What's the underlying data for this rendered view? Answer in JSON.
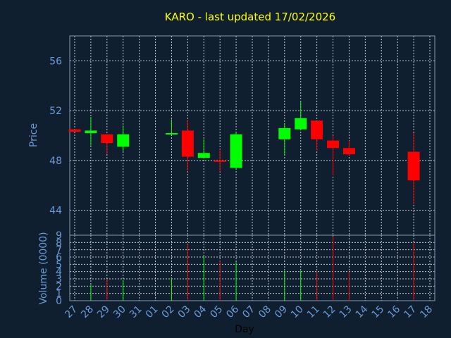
{
  "chart_data": {
    "type": "candlestick",
    "title": "KARO - last updated 17/02/2026",
    "xlabel": "Day",
    "colors": {
      "background": "#0f1f30",
      "up": "#00ff00",
      "down": "#ff0000",
      "grid": "#ffffff",
      "axis": "#8a9ab0",
      "tick_text": "#6a9ad6",
      "title": "#ffff00"
    },
    "x_ticks": [
      "27",
      "28",
      "29",
      "30",
      "31",
      "01",
      "02",
      "03",
      "04",
      "05",
      "06",
      "07",
      "08",
      "09",
      "10",
      "11",
      "12",
      "13",
      "14",
      "15",
      "16",
      "17",
      "18"
    ],
    "price_panel": {
      "ylabel": "Price",
      "ylim": [
        42,
        58
      ],
      "ticks": [
        "44",
        "48",
        "52",
        "56"
      ],
      "tick_values": [
        44,
        48,
        52,
        56
      ],
      "grid": true
    },
    "volume_panel": {
      "ylabel": "Volume (0000)",
      "ylim": [
        0,
        9
      ],
      "ticks": [
        "0",
        "1",
        "2",
        "3",
        "4",
        "5",
        "6",
        "7",
        "8",
        "9"
      ],
      "tick_values": [
        0,
        1,
        2,
        3,
        4,
        5,
        6,
        7,
        8,
        9
      ],
      "grid": true
    },
    "candles": [
      {
        "day": "27",
        "open": 50.5,
        "high": 50.5,
        "low": 50.3,
        "close": 50.3,
        "volume": 0.0
      },
      {
        "day": "28",
        "open": 50.2,
        "high": 51.5,
        "low": 49.2,
        "close": 50.4,
        "volume": 2.2
      },
      {
        "day": "29",
        "open": 50.1,
        "high": 50.1,
        "low": 48.5,
        "close": 49.4,
        "volume": 3.0
      },
      {
        "day": "30",
        "open": 49.1,
        "high": 50.8,
        "low": 48.7,
        "close": 50.1,
        "volume": 2.8
      },
      {
        "day": "02",
        "open": 50.1,
        "high": 51.3,
        "low": 50.0,
        "close": 50.2,
        "volume": 3.2
      },
      {
        "day": "03",
        "open": 50.4,
        "high": 51.2,
        "low": 47.2,
        "close": 48.3,
        "volume": 7.8
      },
      {
        "day": "04",
        "open": 48.2,
        "high": 49.7,
        "low": 48.2,
        "close": 48.6,
        "volume": 6.2
      },
      {
        "day": "05",
        "open": 48.0,
        "high": 48.9,
        "low": 47.1,
        "close": 47.9,
        "volume": 5.5
      },
      {
        "day": "06",
        "open": 47.4,
        "high": 50.3,
        "low": 47.3,
        "close": 50.1,
        "volume": 5.3
      },
      {
        "day": "09",
        "open": 49.7,
        "high": 51.0,
        "low": 48.4,
        "close": 50.6,
        "volume": 4.1
      },
      {
        "day": "10",
        "open": 50.5,
        "high": 52.7,
        "low": 50.4,
        "close": 51.4,
        "volume": 4.1
      },
      {
        "day": "11",
        "open": 51.2,
        "high": 51.2,
        "low": 48.8,
        "close": 49.7,
        "volume": 4.0
      },
      {
        "day": "12",
        "open": 49.6,
        "high": 50.0,
        "low": 46.8,
        "close": 49.0,
        "volume": 8.8
      },
      {
        "day": "13",
        "open": 49.0,
        "high": 49.6,
        "low": 48.4,
        "close": 48.5,
        "volume": 4.0
      },
      {
        "day": "17",
        "open": 48.7,
        "high": 50.2,
        "low": 44.5,
        "close": 46.4,
        "volume": 7.9
      }
    ]
  }
}
